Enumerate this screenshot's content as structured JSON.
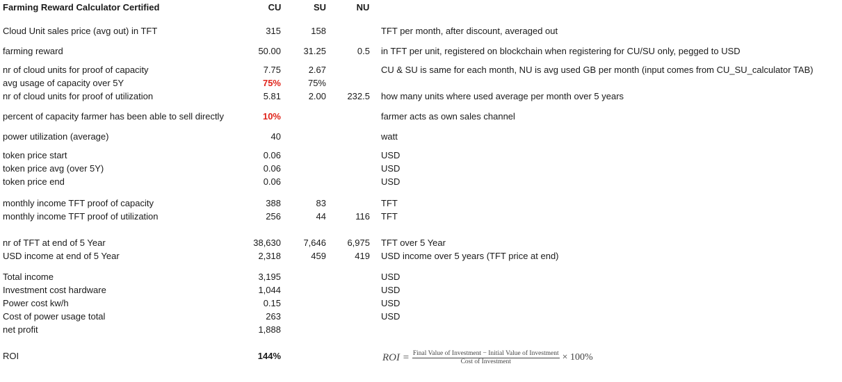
{
  "header": {
    "title": "Farming Reward Calculator Certified",
    "cu": "CU",
    "su": "SU",
    "nu": "NU"
  },
  "rows": [
    {
      "label": "Cloud Unit sales price (avg out) in TFT",
      "cu": "315",
      "su": "158",
      "nu": "",
      "note": "TFT per month, after discount, averaged out"
    },
    {
      "label": "farming reward",
      "cu": "50.00",
      "su": "31.25",
      "nu": "0.5",
      "note": "in TFT per unit, registered on blockchain when registering for CU/SU only, pegged to USD"
    },
    {
      "label": "nr of cloud units for proof of capacity",
      "cu": "7.75",
      "su": "2.67",
      "nu": "",
      "note": "CU & SU is same for each month, NU is avg used GB per month (input comes from CU_SU_calculator TAB)"
    },
    {
      "label": "avg usage of capacity over 5Y",
      "cu": "75%",
      "su": "75%",
      "nu": "",
      "note": ""
    },
    {
      "label": "nr of cloud units for proof of utilization",
      "cu": "5.81",
      "su": "2.00",
      "nu": "232.5",
      "note": "how many units where used average per month over 5 years"
    },
    {
      "label": "percent of capacity farmer has been able to sell directly",
      "cu": "10%",
      "su": "",
      "nu": "",
      "note": "farmer acts as own sales channel"
    },
    {
      "label": "power utilization (average)",
      "cu": "40",
      "su": "",
      "nu": "",
      "note": "watt"
    },
    {
      "label": "token price start",
      "cu": "0.06",
      "su": "",
      "nu": "",
      "note": "USD"
    },
    {
      "label": "token price avg (over 5Y)",
      "cu": "0.06",
      "su": "",
      "nu": "",
      "note": "USD"
    },
    {
      "label": "token price end",
      "cu": "0.06",
      "su": "",
      "nu": "",
      "note": "USD"
    },
    {
      "label": "monthly income TFT proof of capacity",
      "cu": "388",
      "su": "83",
      "nu": "",
      "note": "TFT"
    },
    {
      "label": "monthly income TFT proof of utilization",
      "cu": "256",
      "su": "44",
      "nu": "116",
      "note": "TFT"
    },
    {
      "label": "nr of TFT at end of 5 Year",
      "cu": "38,630",
      "su": "7,646",
      "nu": "6,975",
      "note": "TFT over 5 Year"
    },
    {
      "label": "USD income at end of 5 Year",
      "cu": "2,318",
      "su": "459",
      "nu": "419",
      "note": "USD income over 5 years (TFT price at end)"
    },
    {
      "label": "Total income",
      "cu": "3,195",
      "su": "",
      "nu": "",
      "note": "USD"
    },
    {
      "label": "Investment cost hardware",
      "cu": "1,044",
      "su": "",
      "nu": "",
      "note": "USD"
    },
    {
      "label": "Power cost kw/h",
      "cu": "0.15",
      "su": "",
      "nu": "",
      "note": "USD"
    },
    {
      "label": "Cost of power usage total",
      "cu": "263",
      "su": "",
      "nu": "",
      "note": "USD"
    },
    {
      "label": "net profit",
      "cu": "1,888",
      "su": "",
      "nu": "",
      "note": ""
    },
    {
      "label": "ROI",
      "cu": "144%",
      "su": "",
      "nu": "",
      "note": ""
    }
  ],
  "formula": {
    "lhs": "ROI =",
    "numerator": "Final Value of Investment − Initial Value of Investment",
    "denominator": "Cost of Investment",
    "suffix": "× 100%"
  }
}
